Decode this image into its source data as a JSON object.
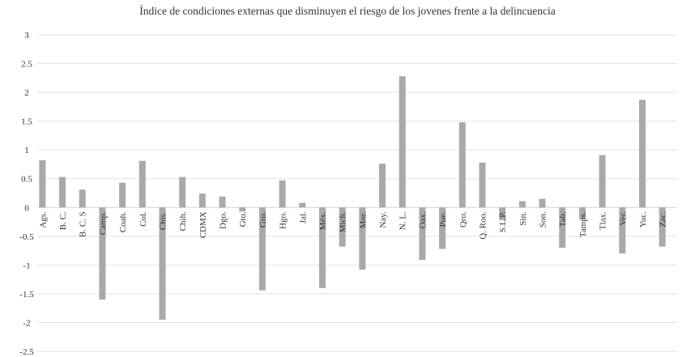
{
  "chart_data": {
    "type": "bar",
    "title": "Índice de condiciones externas que disminuyen el riesgo de los jovenes frente a la delincuencia",
    "xlabel": "",
    "ylabel": "",
    "ylim": [
      -2.5,
      3
    ],
    "yticks": [
      "3",
      "2.5",
      "2",
      "1.5",
      "1",
      "0.5",
      "0",
      "-0.5",
      "-1",
      "-1.5",
      "-2",
      "-2.5"
    ],
    "ytick_values": [
      3,
      2.5,
      2,
      1.5,
      1,
      0.5,
      0,
      -0.5,
      -1,
      -1.5,
      -2,
      -2.5
    ],
    "grid": true,
    "legend": "none",
    "categories": [
      "Ags.",
      "B. C.",
      "B. C. S",
      "Camp.",
      "Coah.",
      "Col.",
      "Chis.",
      "Chih.",
      "CDMX",
      "Dgo.",
      "Gto.",
      "Gro.",
      "Hgo.",
      "Jal.",
      "Méx.",
      "Mich.",
      "Mor.",
      "Nay.",
      "N. L.",
      "Oax.",
      "Pue.",
      "Qro.",
      "Q. Roo.",
      "S.L.P.",
      "Sin.",
      "Son.",
      "Tab.",
      "Tamps.",
      "Tlax.",
      "Ver.",
      "Yuc.",
      "Zac."
    ],
    "values": [
      0.82,
      0.53,
      0.31,
      -1.6,
      0.43,
      0.81,
      -1.95,
      0.53,
      0.24,
      0.19,
      -0.07,
      -1.44,
      0.47,
      0.08,
      -1.4,
      -0.68,
      -1.08,
      0.76,
      2.28,
      -0.91,
      -0.72,
      1.48,
      0.78,
      -0.22,
      0.11,
      0.15,
      -0.7,
      -0.21,
      0.91,
      -0.8,
      1.87,
      -0.68
    ],
    "colors": {
      "bar": "#a9a9a9",
      "grid": "#e2e2e2",
      "zero_line": "#d4d4d4",
      "text": "#333333"
    }
  }
}
